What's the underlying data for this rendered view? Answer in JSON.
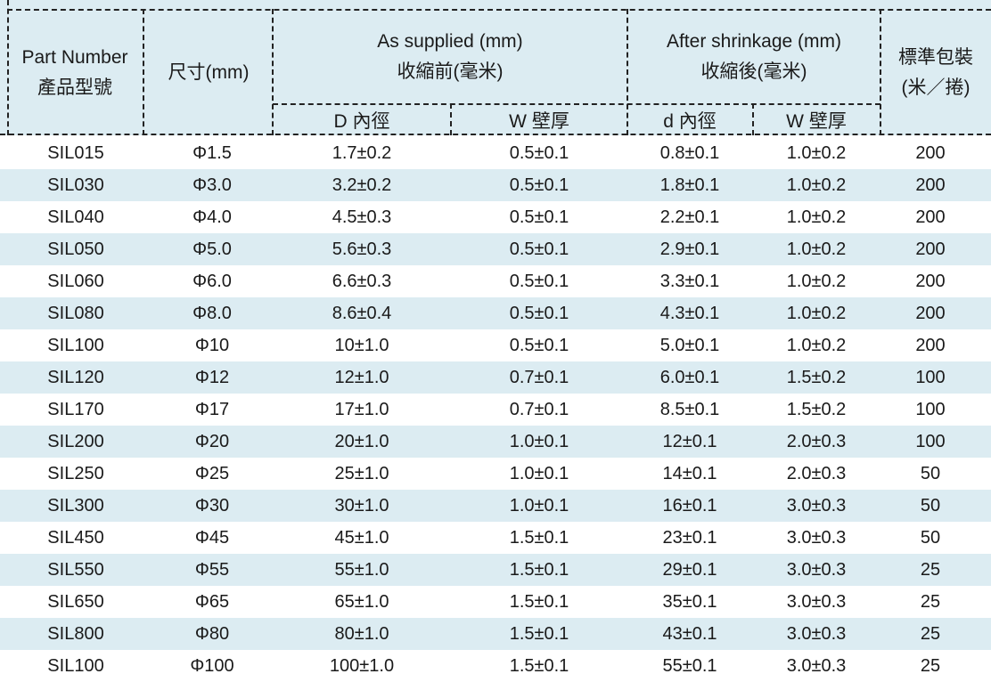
{
  "header": {
    "part_number": "Part Number",
    "part_number_zh": "產品型號",
    "size": "尺寸(mm)",
    "as_supplied": "As supplied (mm)",
    "as_supplied_zh": "收縮前(毫米)",
    "after_shrinkage": "After shrinkage (mm)",
    "after_shrinkage_zh": "收縮後(毫米)",
    "packaging": "標準包裝",
    "packaging_unit": "(米／捲)",
    "sub_D": "D  內徑",
    "sub_W1": "W  壁厚",
    "sub_d": "d  內徑",
    "sub_W2": "W  壁厚"
  },
  "rows": [
    {
      "part": "SIL015",
      "size": "Φ1.5",
      "D": "1.7±0.2",
      "W1": "0.5±0.1",
      "d": "0.8±0.1",
      "W2": "1.0±0.2",
      "pack": "200"
    },
    {
      "part": "SIL030",
      "size": "Φ3.0",
      "D": "3.2±0.2",
      "W1": "0.5±0.1",
      "d": "1.8±0.1",
      "W2": "1.0±0.2",
      "pack": "200"
    },
    {
      "part": "SIL040",
      "size": "Φ4.0",
      "D": "4.5±0.3",
      "W1": "0.5±0.1",
      "d": "2.2±0.1",
      "W2": "1.0±0.2",
      "pack": "200"
    },
    {
      "part": "SIL050",
      "size": "Φ5.0",
      "D": "5.6±0.3",
      "W1": "0.5±0.1",
      "d": "2.9±0.1",
      "W2": "1.0±0.2",
      "pack": "200"
    },
    {
      "part": "SIL060",
      "size": "Φ6.0",
      "D": "6.6±0.3",
      "W1": "0.5±0.1",
      "d": "3.3±0.1",
      "W2": "1.0±0.2",
      "pack": "200"
    },
    {
      "part": "SIL080",
      "size": "Φ8.0",
      "D": "8.6±0.4",
      "W1": "0.5±0.1",
      "d": "4.3±0.1",
      "W2": "1.0±0.2",
      "pack": "200"
    },
    {
      "part": "SIL100",
      "size": "Φ10",
      "D": "10±1.0",
      "W1": "0.5±0.1",
      "d": "5.0±0.1",
      "W2": "1.0±0.2",
      "pack": "200"
    },
    {
      "part": "SIL120",
      "size": "Φ12",
      "D": "12±1.0",
      "W1": "0.7±0.1",
      "d": "6.0±0.1",
      "W2": "1.5±0.2",
      "pack": "100"
    },
    {
      "part": "SIL170",
      "size": "Φ17",
      "D": "17±1.0",
      "W1": "0.7±0.1",
      "d": "8.5±0.1",
      "W2": "1.5±0.2",
      "pack": "100"
    },
    {
      "part": "SIL200",
      "size": "Φ20",
      "D": "20±1.0",
      "W1": "1.0±0.1",
      "d": "12±0.1",
      "W2": "2.0±0.3",
      "pack": "100"
    },
    {
      "part": "SIL250",
      "size": "Φ25",
      "D": "25±1.0",
      "W1": "1.0±0.1",
      "d": "14±0.1",
      "W2": "2.0±0.3",
      "pack": "50"
    },
    {
      "part": "SIL300",
      "size": "Φ30",
      "D": "30±1.0",
      "W1": "1.0±0.1",
      "d": "16±0.1",
      "W2": "3.0±0.3",
      "pack": "50"
    },
    {
      "part": "SIL450",
      "size": "Φ45",
      "D": "45±1.0",
      "W1": "1.5±0.1",
      "d": "23±0.1",
      "W2": "3.0±0.3",
      "pack": "50"
    },
    {
      "part": "SIL550",
      "size": "Φ55",
      "D": "55±1.0",
      "W1": "1.5±0.1",
      "d": "29±0.1",
      "W2": "3.0±0.3",
      "pack": "25"
    },
    {
      "part": "SIL650",
      "size": "Φ65",
      "D": "65±1.0",
      "W1": "1.5±0.1",
      "d": "35±0.1",
      "W2": "3.0±0.3",
      "pack": "25"
    },
    {
      "part": "SIL800",
      "size": "Φ80",
      "D": "80±1.0",
      "W1": "1.5±0.1",
      "d": "43±0.1",
      "W2": "3.0±0.3",
      "pack": "25"
    },
    {
      "part": "SIL100",
      "size": "Φ100",
      "D": "100±1.0",
      "W1": "1.5±0.1",
      "d": "55±0.1",
      "W2": "3.0±0.3",
      "pack": "25"
    }
  ]
}
